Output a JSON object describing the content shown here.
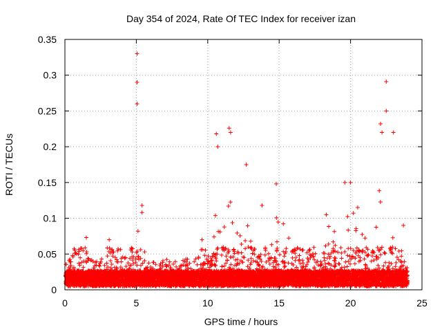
{
  "chart_data": {
    "type": "scatter",
    "title": "Day 354 of 2024, Rate Of TEC Index for receiver izan",
    "xlabel": "GPS time / hours",
    "ylabel": "ROTI / TECUs",
    "xlim": [
      0,
      25
    ],
    "ylim": [
      0,
      0.35
    ],
    "xticks": [
      0,
      5,
      10,
      15,
      20,
      25
    ],
    "xtick_labels": [
      "0",
      "5",
      "10",
      "15",
      "20",
      "25"
    ],
    "yticks": [
      0,
      0.05,
      0.1,
      0.15,
      0.2,
      0.25,
      0.3,
      0.35
    ],
    "ytick_labels": [
      "0",
      "0.05",
      "0.1",
      "0.15",
      "0.2",
      "0.25",
      "0.3",
      "0.35"
    ],
    "grid": true,
    "marker": "+",
    "color": "#ff0000",
    "series": [
      {
        "name": "ROTI",
        "notable_points": [
          {
            "x": 5.05,
            "y": 0.33
          },
          {
            "x": 5.05,
            "y": 0.29
          },
          {
            "x": 5.05,
            "y": 0.26
          },
          {
            "x": 5.4,
            "y": 0.118
          },
          {
            "x": 5.4,
            "y": 0.108
          },
          {
            "x": 22.5,
            "y": 0.291
          },
          {
            "x": 22.5,
            "y": 0.25
          },
          {
            "x": 22.1,
            "y": 0.232
          },
          {
            "x": 22.2,
            "y": 0.22
          },
          {
            "x": 23.0,
            "y": 0.22
          },
          {
            "x": 11.5,
            "y": 0.226
          },
          {
            "x": 11.6,
            "y": 0.22
          },
          {
            "x": 10.6,
            "y": 0.218
          },
          {
            "x": 10.7,
            "y": 0.2
          },
          {
            "x": 12.7,
            "y": 0.175
          },
          {
            "x": 14.8,
            "y": 0.148
          },
          {
            "x": 13.8,
            "y": 0.118
          },
          {
            "x": 19.6,
            "y": 0.15
          },
          {
            "x": 20.0,
            "y": 0.15
          },
          {
            "x": 20.5,
            "y": 0.115
          },
          {
            "x": 18.3,
            "y": 0.105
          },
          {
            "x": 1.5,
            "y": 0.073
          },
          {
            "x": 3.1,
            "y": 0.07
          },
          {
            "x": 9.6,
            "y": 0.07
          },
          {
            "x": 23.7,
            "y": 0.09
          }
        ],
        "envelope": {
          "x": [
            0.0,
            0.5,
            1.0,
            1.5,
            2.0,
            2.5,
            3.0,
            3.5,
            4.0,
            4.5,
            5.0,
            5.5,
            6.0,
            6.5,
            7.0,
            7.5,
            8.0,
            8.5,
            9.0,
            9.5,
            10.0,
            10.5,
            11.0,
            11.5,
            12.0,
            12.5,
            13.0,
            13.5,
            14.0,
            14.5,
            15.0,
            15.5,
            16.0,
            16.5,
            17.0,
            17.5,
            18.0,
            18.5,
            19.0,
            19.5,
            20.0,
            20.5,
            21.0,
            21.5,
            22.0,
            22.5,
            23.0,
            23.5,
            24.0
          ],
          "high": [
            0.03,
            0.045,
            0.06,
            0.07,
            0.035,
            0.03,
            0.06,
            0.045,
            0.05,
            0.03,
            0.1,
            0.06,
            0.03,
            0.028,
            0.035,
            0.03,
            0.03,
            0.035,
            0.03,
            0.05,
            0.06,
            0.15,
            0.1,
            0.16,
            0.08,
            0.13,
            0.07,
            0.08,
            0.09,
            0.08,
            0.12,
            0.09,
            0.06,
            0.05,
            0.05,
            0.06,
            0.07,
            0.09,
            0.1,
            0.11,
            0.12,
            0.1,
            0.08,
            0.06,
            0.14,
            0.12,
            0.1,
            0.08,
            0.02
          ]
        }
      }
    ]
  }
}
